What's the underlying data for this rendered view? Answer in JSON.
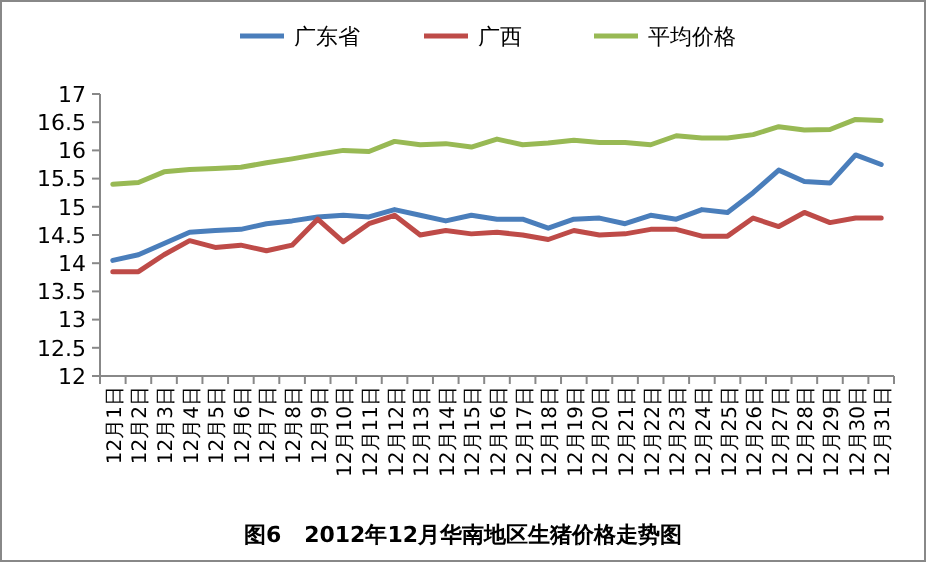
{
  "chart_data": {
    "type": "line",
    "title": "图6   2012年12月华南地区生猪价格走势图",
    "categories": [
      "12月1日",
      "12月2日",
      "12月3日",
      "12月4日",
      "12月5日",
      "12月6日",
      "12月7日",
      "12月8日",
      "12月9日",
      "12月10日",
      "12月11日",
      "12月12日",
      "12月13日",
      "12月14日",
      "12月15日",
      "12月16日",
      "12月17日",
      "12月18日",
      "12月19日",
      "12月20日",
      "12月21日",
      "12月22日",
      "12月23日",
      "12月24日",
      "12月25日",
      "12月26日",
      "12月27日",
      "12月28日",
      "12月29日",
      "12月30日",
      "12月31日"
    ],
    "series": [
      {
        "name": "广东省",
        "color": "#4a7ebb",
        "values": [
          14.05,
          14.15,
          14.35,
          14.55,
          14.58,
          14.6,
          14.7,
          14.75,
          14.82,
          14.85,
          14.82,
          14.95,
          14.85,
          14.75,
          14.85,
          14.78,
          14.78,
          14.62,
          14.78,
          14.8,
          14.7,
          14.85,
          14.78,
          14.95,
          14.9,
          15.25,
          15.65,
          15.45,
          15.42,
          15.92,
          15.75
        ]
      },
      {
        "name": "广西",
        "color": "#be4b48",
        "values": [
          13.85,
          13.85,
          14.15,
          14.4,
          14.28,
          14.32,
          14.22,
          14.32,
          14.78,
          14.38,
          14.7,
          14.85,
          14.5,
          14.58,
          14.52,
          14.55,
          14.5,
          14.42,
          14.58,
          14.5,
          14.52,
          14.6,
          14.6,
          14.48,
          14.48,
          14.8,
          14.65,
          14.9,
          14.72,
          14.8,
          14.8
        ]
      },
      {
        "name": "平均价格",
        "color": "#98b954",
        "values": [
          15.4,
          15.43,
          15.62,
          15.66,
          15.68,
          15.7,
          15.78,
          15.85,
          15.93,
          16.0,
          15.98,
          16.16,
          16.1,
          16.12,
          16.06,
          16.2,
          16.1,
          16.13,
          16.18,
          16.14,
          16.14,
          16.1,
          16.26,
          16.22,
          16.22,
          16.28,
          16.42,
          16.36,
          16.37,
          16.55,
          16.53
        ]
      }
    ],
    "ylim": [
      12,
      17
    ],
    "yticks": [
      12,
      12.5,
      13,
      13.5,
      14,
      14.5,
      15,
      15.5,
      16,
      16.5,
      17
    ],
    "legend": "top",
    "marker": "none",
    "line_style": "solid"
  }
}
